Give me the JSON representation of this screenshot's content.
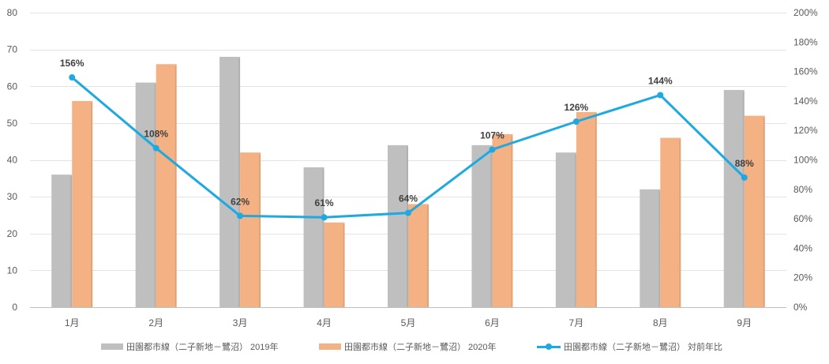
{
  "chart_data": {
    "type": "bar+line",
    "categories": [
      "1月",
      "2月",
      "3月",
      "4月",
      "5月",
      "6月",
      "7月",
      "8月",
      "9月"
    ],
    "series": [
      {
        "name": "田園都市線（二子新地－鷺沼） 2019年",
        "type": "bar",
        "axis": "left",
        "color": "#bfbfbf",
        "values": [
          36,
          61,
          68,
          38,
          44,
          44,
          42,
          32,
          59
        ]
      },
      {
        "name": "田園都市線（二子新地－鷺沼） 2020年",
        "type": "bar",
        "axis": "left",
        "color": "#f4b183",
        "values": [
          56,
          66,
          42,
          23,
          28,
          47,
          53,
          46,
          52
        ]
      },
      {
        "name": "田園都市線（二子新地－鷺沼） 対前年比",
        "type": "line",
        "axis": "right",
        "color": "#1fa9e1",
        "values": [
          156,
          108,
          62,
          61,
          64,
          107,
          126,
          144,
          88
        ],
        "labels": [
          "156%",
          "108%",
          "62%",
          "61%",
          "64%",
          "107%",
          "126%",
          "144%",
          "88%"
        ]
      }
    ],
    "y_left": {
      "min": 0,
      "max": 80,
      "ticks": [
        "0",
        "10",
        "20",
        "30",
        "40",
        "50",
        "60",
        "70",
        "80"
      ]
    },
    "y_right": {
      "min": 0,
      "max": 200,
      "ticks": [
        "0%",
        "20%",
        "40%",
        "60%",
        "80%",
        "100%",
        "120%",
        "140%",
        "160%",
        "180%",
        "200%"
      ]
    },
    "grid": true,
    "legend_position": "bottom",
    "title": "",
    "xlabel": "",
    "ylabel": ""
  }
}
